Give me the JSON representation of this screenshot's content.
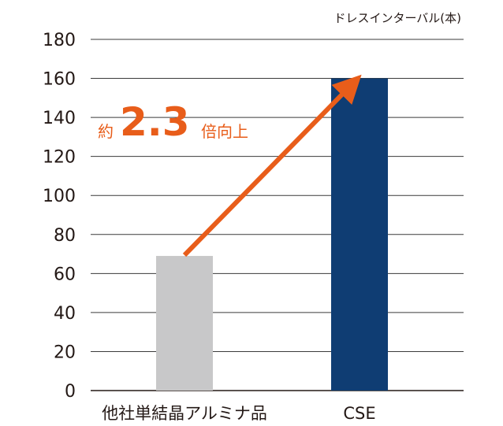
{
  "chart_data": {
    "type": "bar",
    "categories": [
      "他社単結晶アルミナ品",
      "CSE"
    ],
    "values": [
      69,
      160
    ],
    "bar_colors": [
      "#c8c8c9",
      "#0f3d73"
    ],
    "unit_label": "ドレスインターバル(本)",
    "ylim": [
      0,
      180
    ],
    "yticks": [
      0,
      20,
      40,
      60,
      80,
      100,
      120,
      140,
      160,
      180
    ],
    "grid": true,
    "annotation": {
      "prefix": "約",
      "value": "2.3",
      "suffix": "倍向上",
      "color": "#e85d1a",
      "arrow_from_category": 0,
      "arrow_to_category": 1
    }
  }
}
